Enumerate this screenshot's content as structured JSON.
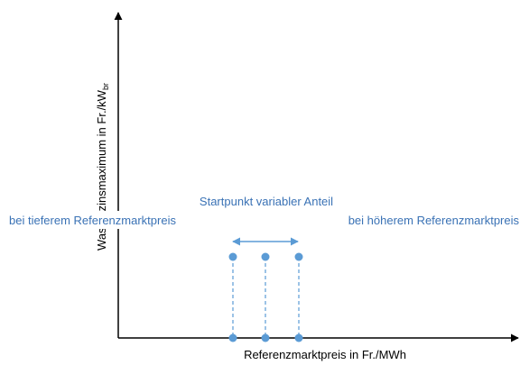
{
  "diagram": {
    "y_axis_label": "Wasserzinsmaximum in Fr./kW",
    "y_axis_label_sub": "br",
    "x_axis_label": "Referenzmarktpreis in Fr./MWh",
    "annotation_top": "Startpunkt variabler Anteil",
    "annotation_left": "bei tieferem Referenzmarktpreis",
    "annotation_right": "bei höherem Referenzmarktpreis"
  }
}
